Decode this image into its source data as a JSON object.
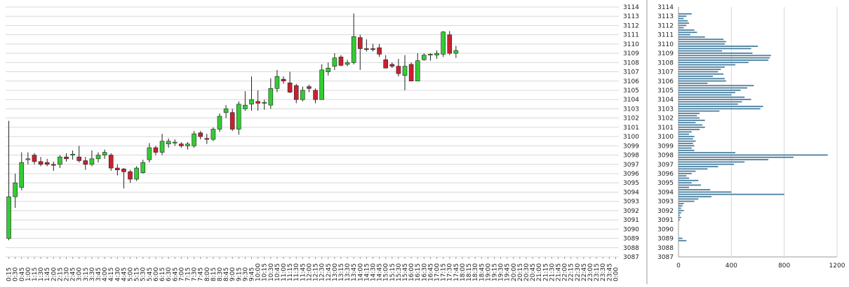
{
  "chart_data": [
    {
      "type": "candlestick",
      "categories": [
        "0:15",
        "0:30",
        "0:45",
        "1:00",
        "1:15",
        "1:30",
        "1:45",
        "2:00",
        "2:15",
        "2:30",
        "2:45",
        "3:00",
        "3:15",
        "3:30",
        "3:45",
        "4:00",
        "4:15",
        "4:30",
        "4:45",
        "5:00",
        "5:15",
        "5:30",
        "5:45",
        "6:00",
        "6:15",
        "6:30",
        "6:45",
        "7:00",
        "7:15",
        "7:30",
        "7:45",
        "8:00",
        "8:15",
        "8:30",
        "8:45",
        "9:00",
        "9:15",
        "9:30",
        "9:45",
        "10:00",
        "10:15",
        "10:30",
        "10:45",
        "11:00",
        "11:15",
        "11:30",
        "11:45",
        "12:00",
        "12:15",
        "12:30",
        "12:45",
        "13:00",
        "13:15",
        "13:30",
        "13:45",
        "14:00",
        "14:15",
        "14:30",
        "14:45",
        "15:00",
        "15:15",
        "15:30",
        "15:45",
        "16:00",
        "16:15",
        "16:30",
        "16:45",
        "17:00",
        "17:15",
        "17:30",
        "17:45",
        "18:00",
        "18:15",
        "18:30",
        "18:45",
        "19:00",
        "19:15",
        "19:30",
        "19:45",
        "20:00",
        "20:15",
        "20:30",
        "20:45",
        "21:00",
        "21:15",
        "21:30",
        "21:45",
        "22:00",
        "22:15",
        "22:30",
        "22:45",
        "23:00",
        "23:15",
        "23:30",
        "23:45",
        "0:00"
      ],
      "ohlc": [
        [
          3089.0,
          3101.7,
          3088.8,
          3093.5
        ],
        [
          3093.5,
          3096.0,
          3092.3,
          3095.0
        ],
        [
          3094.5,
          3098.3,
          3094.2,
          3097.2
        ],
        [
          3097.5,
          3098.3,
          3097.0,
          3097.6
        ],
        [
          3098.0,
          3098.2,
          3097.0,
          3097.3
        ],
        [
          3097.3,
          3097.8,
          3096.8,
          3097.0
        ],
        [
          3097.2,
          3097.6,
          3096.8,
          3097.0
        ],
        [
          3097.0,
          3097.3,
          3096.3,
          3096.9
        ],
        [
          3097.0,
          3098.0,
          3096.6,
          3097.8
        ],
        [
          3097.8,
          3098.2,
          3097.3,
          3097.6
        ],
        [
          3098.0,
          3098.5,
          3097.5,
          3098.1
        ],
        [
          3097.8,
          3099.0,
          3097.2,
          3097.4
        ],
        [
          3097.4,
          3097.8,
          3096.4,
          3097.0
        ],
        [
          3097.0,
          3098.5,
          3096.8,
          3097.6
        ],
        [
          3097.6,
          3098.3,
          3097.2,
          3098.0
        ],
        [
          3098.0,
          3098.6,
          3097.6,
          3098.3
        ],
        [
          3098.0,
          3098.2,
          3096.3,
          3096.6
        ],
        [
          3096.6,
          3097.0,
          3095.8,
          3096.4
        ],
        [
          3096.5,
          3096.6,
          3094.4,
          3096.2
        ],
        [
          3096.2,
          3096.4,
          3095.0,
          3095.4
        ],
        [
          3095.4,
          3096.8,
          3095.2,
          3096.6
        ],
        [
          3096.1,
          3097.5,
          3096.0,
          3097.2
        ],
        [
          3097.5,
          3099.3,
          3097.2,
          3098.8
        ],
        [
          3098.8,
          3099.0,
          3098.0,
          3098.3
        ],
        [
          3098.3,
          3100.3,
          3098.0,
          3099.5
        ],
        [
          3099.2,
          3099.8,
          3098.8,
          3099.5
        ],
        [
          3099.3,
          3099.7,
          3099.0,
          3099.4
        ],
        [
          3099.2,
          3099.4,
          3098.8,
          3099.0
        ],
        [
          3099.0,
          3099.4,
          3098.6,
          3099.2
        ],
        [
          3099.0,
          3100.6,
          3098.8,
          3100.3
        ],
        [
          3100.4,
          3100.6,
          3099.7,
          3100.0
        ],
        [
          3099.8,
          3100.3,
          3099.2,
          3099.7
        ],
        [
          3099.7,
          3101.0,
          3099.5,
          3100.8
        ],
        [
          3100.8,
          3102.5,
          3100.5,
          3102.2
        ],
        [
          3102.6,
          3103.4,
          3102.0,
          3103.0
        ],
        [
          3102.6,
          3103.0,
          3100.6,
          3100.8
        ],
        [
          3100.8,
          3103.8,
          3100.2,
          3103.5
        ],
        [
          3103.0,
          3104.9,
          3102.8,
          3103.4
        ],
        [
          3103.5,
          3106.5,
          3102.8,
          3104.0
        ],
        [
          3103.8,
          3105.0,
          3102.8,
          3103.6
        ],
        [
          3103.6,
          3104.0,
          3102.9,
          3103.7
        ],
        [
          3103.4,
          3106.3,
          3103.0,
          3105.2
        ],
        [
          3105.2,
          3107.2,
          3104.8,
          3106.5
        ],
        [
          3106.2,
          3106.5,
          3105.7,
          3106.0
        ],
        [
          3105.8,
          3107.0,
          3104.7,
          3104.8
        ],
        [
          3105.5,
          3105.7,
          3103.6,
          3104.0
        ],
        [
          3104.0,
          3105.4,
          3103.8,
          3105.0
        ],
        [
          3105.4,
          3105.6,
          3104.8,
          3105.2
        ],
        [
          3105.0,
          3105.2,
          3103.6,
          3104.0
        ],
        [
          3104.0,
          3107.8,
          3104.0,
          3107.2
        ],
        [
          3107.0,
          3108.0,
          3106.6,
          3107.4
        ],
        [
          3107.6,
          3109.0,
          3107.2,
          3108.5
        ],
        [
          3108.6,
          3108.8,
          3107.6,
          3107.7
        ],
        [
          3107.8,
          3108.3,
          3107.6,
          3108.0
        ],
        [
          3108.0,
          3113.3,
          3107.8,
          3110.8
        ],
        [
          3110.7,
          3111.0,
          3107.2,
          3109.5
        ],
        [
          3109.5,
          3110.5,
          3109.2,
          3109.4
        ],
        [
          3109.5,
          3110.0,
          3109.2,
          3109.4
        ],
        [
          3109.6,
          3110.0,
          3108.6,
          3108.9
        ],
        [
          3108.3,
          3108.8,
          3107.4,
          3107.4
        ],
        [
          3107.8,
          3108.0,
          3107.4,
          3107.6
        ],
        [
          3107.6,
          3108.4,
          3106.5,
          3106.8
        ],
        [
          3106.6,
          3108.8,
          3105.0,
          3107.6
        ],
        [
          3107.8,
          3108.0,
          3106.0,
          3106.0
        ],
        [
          3106.0,
          3109.0,
          3106.0,
          3108.2
        ],
        [
          3108.3,
          3109.0,
          3108.2,
          3108.8
        ],
        [
          3108.8,
          3109.0,
          3108.2,
          3108.9
        ],
        [
          3108.8,
          3109.3,
          3108.4,
          3109.0
        ],
        [
          3108.9,
          3111.4,
          3108.6,
          3111.3
        ],
        [
          3111.0,
          3111.4,
          3108.8,
          3109.0
        ],
        [
          3109.0,
          3109.8,
          3108.5,
          3109.3
        ],
        null,
        null,
        null,
        null,
        null,
        null,
        null,
        null,
        null,
        null,
        null,
        null,
        null,
        null,
        null,
        null,
        null,
        null,
        null,
        null,
        null,
        null,
        null,
        null,
        null
      ],
      "up_color": "#33cc33",
      "down_color": "#cc1f2f",
      "ylim": [
        3087,
        3114
      ],
      "yticks": [
        3087,
        3088,
        3089,
        3090,
        3091,
        3092,
        3093,
        3094,
        3095,
        3096,
        3097,
        3098,
        3099,
        3100,
        3101,
        3102,
        3103,
        3104,
        3105,
        3106,
        3107,
        3108,
        3109,
        3110,
        3111,
        3112,
        3113,
        3114
      ],
      "grid": true
    },
    {
      "type": "profile",
      "prices": [
        3113.25,
        3113,
        3112.75,
        3112.5,
        3112.25,
        3112,
        3111.75,
        3111.5,
        3111.25,
        3111,
        3110.75,
        3110.5,
        3110.25,
        3110,
        3109.75,
        3109.5,
        3109.25,
        3109,
        3108.75,
        3108.5,
        3108.25,
        3108,
        3107.75,
        3107.5,
        3107.25,
        3107,
        3106.75,
        3106.5,
        3106.25,
        3106,
        3105.75,
        3105.5,
        3105.25,
        3105,
        3104.75,
        3104.5,
        3104.25,
        3104,
        3103.75,
        3103.5,
        3103.25,
        3103,
        3102.75,
        3102.5,
        3102.25,
        3102,
        3101.75,
        3101.5,
        3101.25,
        3101,
        3100.75,
        3100.5,
        3100.25,
        3100,
        3099.75,
        3099.5,
        3099.25,
        3099,
        3098.75,
        3098.5,
        3098.25,
        3098,
        3097.75,
        3097.5,
        3097.25,
        3097,
        3096.75,
        3096.5,
        3096.25,
        3096,
        3095.75,
        3095.5,
        3095.25,
        3095,
        3094.75,
        3094.5,
        3094.25,
        3094,
        3093.75,
        3093.5,
        3093.25,
        3093,
        3092.75,
        3092.5,
        3092.25,
        3092,
        3091.75,
        3091.5,
        3091.25,
        3091,
        3089,
        3088.75
      ],
      "values": [
        100,
        60,
        40,
        70,
        80,
        60,
        40,
        120,
        140,
        90,
        200,
        340,
        360,
        350,
        600,
        550,
        330,
        560,
        700,
        690,
        680,
        530,
        430,
        350,
        320,
        300,
        340,
        260,
        350,
        360,
        220,
        570,
        520,
        470,
        430,
        400,
        500,
        550,
        480,
        450,
        640,
        620,
        310,
        160,
        140,
        160,
        200,
        130,
        180,
        200,
        160,
        100,
        80,
        120,
        110,
        130,
        110,
        120,
        100,
        120,
        430,
        1130,
        870,
        680,
        500,
        420,
        300,
        220,
        130,
        100,
        60,
        80,
        150,
        100,
        170,
        80,
        240,
        400,
        800,
        250,
        150,
        120,
        40,
        30,
        20,
        40,
        20,
        10,
        20,
        10,
        30,
        60
      ],
      "color": "#4a7fa0",
      "xlim": [
        0,
        1200
      ],
      "xticks": [
        0,
        400,
        800,
        1200
      ],
      "ylim": [
        3087,
        3114
      ],
      "yticks": [
        3087,
        3088,
        3089,
        3090,
        3091,
        3092,
        3093,
        3094,
        3095,
        3096,
        3097,
        3098,
        3099,
        3100,
        3101,
        3102,
        3103,
        3104,
        3105,
        3106,
        3107,
        3108,
        3109,
        3110,
        3111,
        3112,
        3113,
        3114
      ],
      "grid": true
    }
  ]
}
